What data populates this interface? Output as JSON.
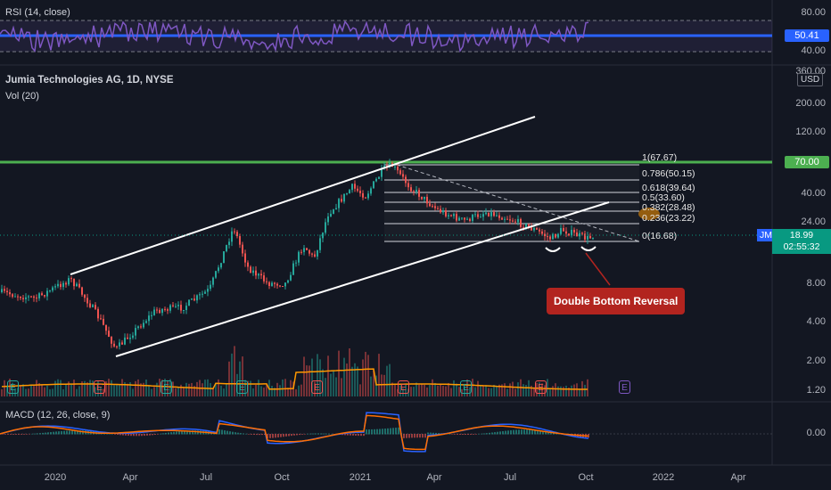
{
  "rsi": {
    "label": "RSI (14, close)",
    "ticks": [
      "80.00",
      "40.00"
    ],
    "value_badge": "50.41"
  },
  "main": {
    "title": "Jumia Technologies AG, 1D, NYSE",
    "volume_label": "Vol (20)",
    "currency": "USD",
    "price_ticks": [
      "360.00",
      "200.00",
      "120.00",
      "40.00",
      "24.00",
      "8.00",
      "4.00",
      "2.00",
      "1.20"
    ],
    "resistance_badge": "70.00",
    "symbol": "JMIA",
    "last_price": "18.99",
    "countdown": "02:55:32",
    "callout": "Double Bottom Reversal",
    "fib_levels": [
      "1(67.67)",
      "0.786(50.15)",
      "0.618(39.64)",
      "0.5(33.60)",
      "0.382(28.48)",
      "0.236(23.22)",
      "0(16.68)"
    ],
    "earnings_marker": "E"
  },
  "macd": {
    "label": "MACD (12, 26, close, 9)",
    "zero_tick": "0.00"
  },
  "time_axis": [
    "2020",
    "Apr",
    "Jul",
    "Oct",
    "2021",
    "Apr",
    "Jul",
    "Oct",
    "2022",
    "Apr"
  ],
  "colors": {
    "background": "#131722",
    "rsi_line": "#7e57c2",
    "resistance": "#4caf50",
    "up": "#26a69a",
    "down": "#ef5350",
    "callout": "#b2241f"
  }
}
